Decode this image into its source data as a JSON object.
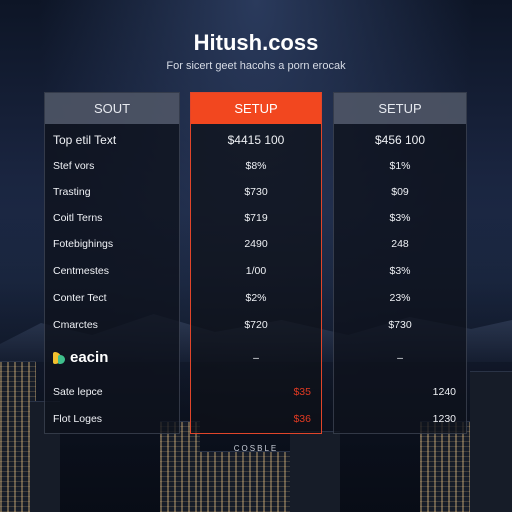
{
  "header": {
    "title": "Hitush.coss",
    "subtitle": "For sicert geet hacohs a porn erocak"
  },
  "columns": [
    {
      "head": "SOUT",
      "rows": [
        "Top etil Text",
        "Stef vors",
        "Trasting",
        "Coitl Terns",
        "Fotebighings",
        "Centmestes",
        "Conter Tect",
        "Cmarctes",
        "eacin",
        "Sate lepce",
        "Flot Loges"
      ]
    },
    {
      "head": "SETUP",
      "rows": [
        "$4415 100",
        "$8%",
        "$730",
        "$719",
        "2490",
        "1/00",
        "$2%",
        "$720",
        "–",
        "$35",
        "$36"
      ]
    },
    {
      "head": "SETUP",
      "rows": [
        "$456 100",
        "$1%",
        "$09",
        "$3%",
        "248",
        "$3%",
        "23%",
        "$730",
        "–",
        "1240",
        "1230"
      ]
    }
  ],
  "footer": {
    "text": "COSBLE"
  },
  "colors": {
    "accent": "#f2471f",
    "highlight_value": "#e03a22",
    "logo_yellow": "#f2c12e",
    "logo_green": "#3fbf8c"
  }
}
